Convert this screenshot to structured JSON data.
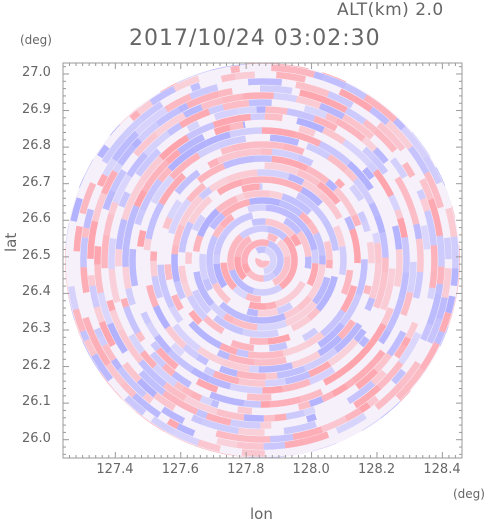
{
  "header": {
    "altitude_label": "ALT(km) 2.0",
    "timestamp": "2017/10/24 03:02:30"
  },
  "axes": {
    "x_unit": "(deg)",
    "y_unit": "(deg)",
    "x_name": "lon",
    "y_name": "lat"
  },
  "colors": {
    "positive": "#ff9aa2",
    "negative": "#a9a9ff",
    "frame": "#999999",
    "text": "#666666"
  },
  "chart_data": {
    "type": "heatmap",
    "title": "",
    "xlabel": "lon",
    "ylabel": "lat",
    "x_ticks": [
      "127.4",
      "127.6",
      "127.8",
      "128.0",
      "128.2",
      "128.4"
    ],
    "x_tick_values": [
      127.4,
      127.6,
      127.8,
      128.0,
      128.2,
      128.4
    ],
    "y_ticks": [
      "26.0",
      "26.1",
      "26.2",
      "26.3",
      "26.4",
      "26.5",
      "26.6",
      "26.7",
      "26.8",
      "26.9",
      "27.0"
    ],
    "y_tick_values": [
      26.0,
      26.1,
      26.2,
      26.3,
      26.4,
      26.5,
      26.6,
      26.7,
      26.8,
      26.9,
      27.0
    ],
    "xlim": [
      127.24,
      128.46
    ],
    "ylim": [
      25.95,
      27.03
    ],
    "center": {
      "lon": 127.85,
      "lat": 26.49
    },
    "radius_deg_lat": 0.54,
    "grid": false,
    "legend": "none"
  }
}
